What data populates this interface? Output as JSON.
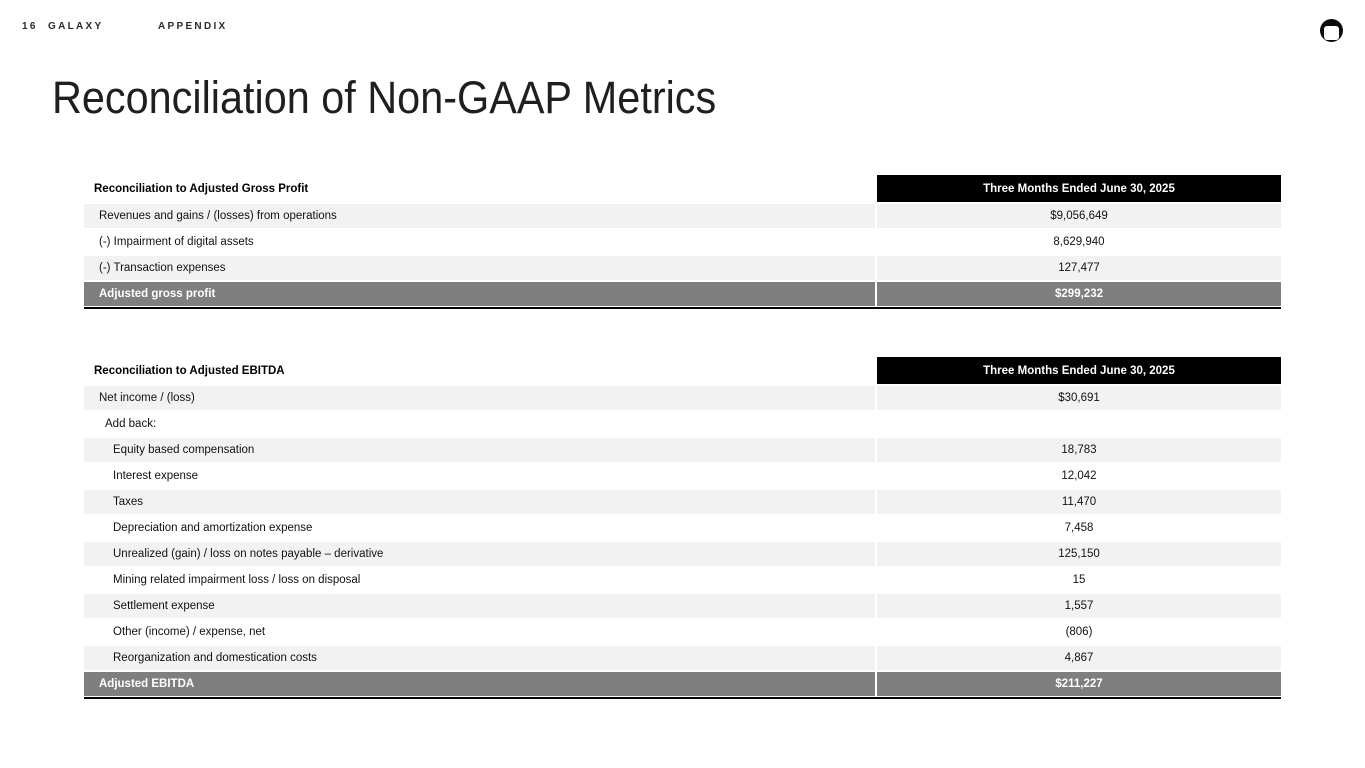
{
  "topbar": {
    "slide_number": "16",
    "brand": "GALAXY",
    "section": "APPENDIX"
  },
  "title": "Reconciliation of Non-GAAP Metrics",
  "colors": {
    "column_header_bg": "#000000",
    "column_header_text": "#ffffff",
    "shaded_row_bg": "#f2f2f2",
    "total_row_bg": "#7f7f7f",
    "total_row_text": "#ffffff"
  },
  "tables": [
    {
      "title": "Reconciliation to Adjusted Gross Profit",
      "column_header": "Three Months Ended June 30, 2025",
      "rows": [
        {
          "label": "Revenues and gains / (losses) from operations",
          "value": "$9,056,649",
          "indent": 0
        },
        {
          "label": "(-) Impairment of digital assets",
          "value": "8,629,940",
          "indent": 0
        },
        {
          "label": "(-) Transaction expenses",
          "value": "127,477",
          "indent": 0
        }
      ],
      "total_row": {
        "label": "Adjusted gross profit",
        "value": "$299,232"
      }
    },
    {
      "title": "Reconciliation to Adjusted EBITDA",
      "column_header": "Three Months Ended June 30, 2025",
      "rows": [
        {
          "label": "Net income / (loss)",
          "value": "$30,691",
          "indent": 0
        },
        {
          "label": "Add back:",
          "value": "",
          "indent": 1
        },
        {
          "label": "Equity based compensation",
          "value": "18,783",
          "indent": 2
        },
        {
          "label": "Interest expense",
          "value": "12,042",
          "indent": 2
        },
        {
          "label": "Taxes",
          "value": "11,470",
          "indent": 2
        },
        {
          "label": "Depreciation and amortization expense",
          "value": "7,458",
          "indent": 2
        },
        {
          "label": "Unrealized (gain) / loss on notes payable – derivative",
          "value": "125,150",
          "indent": 2
        },
        {
          "label": "Mining related impairment loss / loss on disposal",
          "value": "15",
          "indent": 2
        },
        {
          "label": "Settlement expense",
          "value": "1,557",
          "indent": 2
        },
        {
          "label": "Other (income) / expense, net",
          "value": "(806)",
          "indent": 2
        },
        {
          "label": "Reorganization and domestication costs",
          "value": "4,867",
          "indent": 2
        }
      ],
      "total_row": {
        "label": "Adjusted EBITDA",
        "value": "$211,227"
      }
    }
  ]
}
